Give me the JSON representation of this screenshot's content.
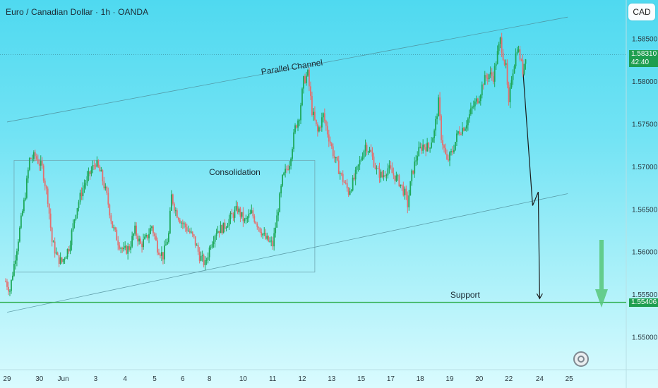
{
  "header": {
    "title": "Euro / Canadian Dollar · 1h · OANDA",
    "currency_button": "CAD"
  },
  "price_tags": {
    "current_price": "1.58310",
    "countdown": "42:40",
    "support_price": "1.55406"
  },
  "colors": {
    "up": "#1ea85a",
    "down": "#e36f6f",
    "support_line": "#2fae4f",
    "channel_line": "#4d8a96",
    "arrow": "#1a1a1a",
    "forecast_arrow": "#57c779"
  },
  "icons": {
    "logo": "tradingview-logo-icon",
    "forecast": "down-arrow-icon"
  },
  "chart_data": {
    "type": "candlestick",
    "symbol": "EURCAD",
    "interval": "1h",
    "ylim": [
      1.5465,
      1.5895
    ],
    "y_ticks": [
      1.585,
      1.58,
      1.575,
      1.57,
      1.565,
      1.56,
      1.555,
      1.55
    ],
    "x_ticks": [
      {
        "label": "29",
        "i": 1
      },
      {
        "label": "30",
        "i": 24
      },
      {
        "label": "Jun",
        "i": 41
      },
      {
        "label": "3",
        "i": 64
      },
      {
        "label": "4",
        "i": 85
      },
      {
        "label": "5",
        "i": 106
      },
      {
        "label": "6",
        "i": 126
      },
      {
        "label": "8",
        "i": 145
      },
      {
        "label": "10",
        "i": 169
      },
      {
        "label": "11",
        "i": 190
      },
      {
        "label": "12",
        "i": 211
      },
      {
        "label": "13",
        "i": 232
      },
      {
        "label": "15",
        "i": 253
      },
      {
        "label": "17",
        "i": 274
      },
      {
        "label": "18",
        "i": 295
      },
      {
        "label": "19",
        "i": 316
      },
      {
        "label": "20",
        "i": 337
      },
      {
        "label": "22",
        "i": 358
      },
      {
        "label": "24",
        "i": 380
      },
      {
        "label": "25",
        "i": 401
      }
    ],
    "total_slots": 420,
    "price_path": [
      [
        0,
        1.5565
      ],
      [
        3,
        1.5555
      ],
      [
        8,
        1.5605
      ],
      [
        14,
        1.5668
      ],
      [
        17,
        1.5708
      ],
      [
        21,
        1.5712
      ],
      [
        26,
        1.5698
      ],
      [
        30,
        1.5662
      ],
      [
        33,
        1.5612
      ],
      [
        37,
        1.5592
      ],
      [
        40,
        1.5588
      ],
      [
        45,
        1.5605
      ],
      [
        50,
        1.5648
      ],
      [
        55,
        1.5675
      ],
      [
        61,
        1.5695
      ],
      [
        64,
        1.5705
      ],
      [
        68,
        1.569
      ],
      [
        72,
        1.5665
      ],
      [
        76,
        1.563
      ],
      [
        80,
        1.5612
      ],
      [
        84,
        1.56
      ],
      [
        88,
        1.5605
      ],
      [
        92,
        1.5625
      ],
      [
        96,
        1.5608
      ],
      [
        100,
        1.5615
      ],
      [
        104,
        1.563
      ],
      [
        108,
        1.5605
      ],
      [
        112,
        1.5595
      ],
      [
        116,
        1.562
      ],
      [
        118,
        1.5665
      ],
      [
        121,
        1.5648
      ],
      [
        125,
        1.5635
      ],
      [
        130,
        1.5625
      ],
      [
        134,
        1.5615
      ],
      [
        138,
        1.5595
      ],
      [
        142,
        1.5585
      ],
      [
        146,
        1.561
      ],
      [
        150,
        1.5625
      ],
      [
        155,
        1.5628
      ],
      [
        160,
        1.564
      ],
      [
        165,
        1.565
      ],
      [
        170,
        1.5635
      ],
      [
        175,
        1.5645
      ],
      [
        180,
        1.563
      ],
      [
        185,
        1.5615
      ],
      [
        190,
        1.5608
      ],
      [
        193,
        1.564
      ],
      [
        197,
        1.5685
      ],
      [
        202,
        1.5705
      ],
      [
        206,
        1.5745
      ],
      [
        209,
        1.576
      ],
      [
        212,
        1.58
      ],
      [
        215,
        1.5808
      ],
      [
        218,
        1.5765
      ],
      [
        222,
        1.574
      ],
      [
        226,
        1.576
      ],
      [
        229,
        1.574
      ],
      [
        234,
        1.571
      ],
      [
        239,
        1.5688
      ],
      [
        244,
        1.567
      ],
      [
        248,
        1.5685
      ],
      [
        252,
        1.5705
      ],
      [
        256,
        1.5725
      ],
      [
        260,
        1.5715
      ],
      [
        264,
        1.5695
      ],
      [
        268,
        1.5688
      ],
      [
        272,
        1.5698
      ],
      [
        276,
        1.569
      ],
      [
        280,
        1.5682
      ],
      [
        284,
        1.5668
      ],
      [
        286,
        1.5655
      ],
      [
        289,
        1.569
      ],
      [
        293,
        1.5715
      ],
      [
        297,
        1.5725
      ],
      [
        301,
        1.5722
      ],
      [
        305,
        1.574
      ],
      [
        308,
        1.5775
      ],
      [
        310,
        1.5735
      ],
      [
        314,
        1.5705
      ],
      [
        318,
        1.5718
      ],
      [
        322,
        1.574
      ],
      [
        327,
        1.5748
      ],
      [
        332,
        1.5768
      ],
      [
        337,
        1.5782
      ],
      [
        340,
        1.58
      ],
      [
        344,
        1.5808
      ],
      [
        347,
        1.5805
      ],
      [
        350,
        1.5832
      ],
      [
        352,
        1.5848
      ],
      [
        354,
        1.583
      ],
      [
        356,
        1.5815
      ],
      [
        358,
        1.577
      ],
      [
        360,
        1.5805
      ],
      [
        362,
        1.5822
      ],
      [
        364,
        1.584
      ],
      [
        366,
        1.5828
      ],
      [
        368,
        1.5812
      ],
      [
        370,
        1.5831
      ]
    ],
    "annotations": [
      {
        "type": "label",
        "text": "Parallel Channel",
        "i": 204,
        "price": 1.5813,
        "rotate": -9
      },
      {
        "type": "label",
        "text": "Consolidation",
        "i": 163,
        "price": 1.569
      },
      {
        "type": "label",
        "text": "Support",
        "i": 327,
        "price": 1.5546
      },
      {
        "type": "rectangle",
        "name": "consolidation",
        "i0": 6,
        "i1": 220,
        "p0": 1.5576,
        "p1": 1.5707
      },
      {
        "type": "line",
        "name": "channel-upper",
        "i0": 1,
        "p0": 1.5752,
        "i1": 400,
        "p1": 1.5875
      },
      {
        "type": "line",
        "name": "channel-lower",
        "i0": 1,
        "p0": 1.5529,
        "i1": 400,
        "p1": 1.5668
      },
      {
        "type": "horizontal",
        "name": "current-price",
        "price": 1.5831
      },
      {
        "type": "horizontal",
        "name": "support",
        "price": 1.55406
      },
      {
        "type": "path",
        "name": "projection",
        "points": [
          [
            368,
            1.5815
          ],
          [
            375,
            1.5654
          ],
          [
            379,
            1.567
          ],
          [
            380,
            1.5545
          ]
        ]
      }
    ]
  }
}
